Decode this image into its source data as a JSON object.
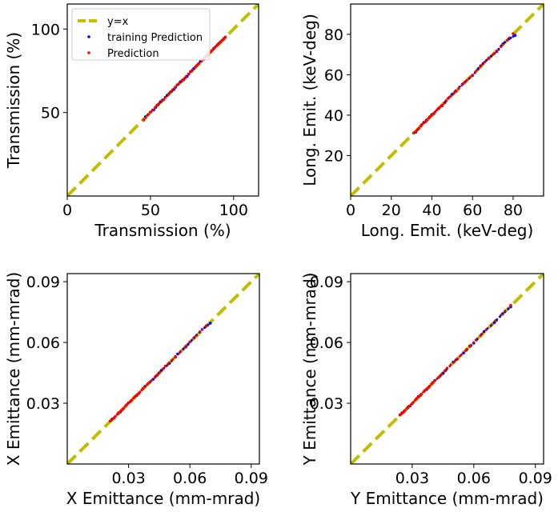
{
  "chart_data": [
    {
      "type": "scatter",
      "xlabel": "Transmission (%)",
      "ylabel": "Transmission (%)",
      "xlim": [
        0,
        115
      ],
      "ylim": [
        0,
        115
      ],
      "xticks": [
        0,
        50,
        100
      ],
      "xtick_labels": [
        "0",
        "50",
        "100"
      ],
      "yticks": [
        50,
        100
      ],
      "ytick_labels": [
        "50",
        "100"
      ],
      "legend": {
        "position": "top-left",
        "entries": [
          {
            "label": "y=x",
            "style": "dashed-line",
            "color": "#bfbf00"
          },
          {
            "label": "training Prediction",
            "style": "dot",
            "color": "#0000ff"
          },
          {
            "label": "Prediction",
            "style": "dot",
            "color": "#ff0000"
          }
        ]
      },
      "series": [
        {
          "name": "y=x",
          "kind": "line",
          "color": "#bfbf00",
          "x": [
            0,
            115
          ],
          "y": [
            0,
            115
          ]
        },
        {
          "name": "training Prediction",
          "kind": "scatter",
          "color": "#0000ff",
          "x": [
            47,
            52,
            56,
            60,
            64,
            68,
            72,
            76,
            80,
            84,
            88,
            91,
            94
          ],
          "y": [
            47.5,
            51.6,
            56.4,
            60.3,
            63.7,
            68.4,
            71.6,
            76.3,
            80.5,
            83.6,
            88.4,
            91.3,
            94.2
          ]
        },
        {
          "name": "Prediction",
          "kind": "scatter",
          "color": "#ff0000",
          "x": [
            46,
            50,
            54,
            58,
            62,
            66,
            70,
            74,
            78,
            82,
            84,
            86,
            88,
            90,
            92,
            94,
            95
          ],
          "y": [
            45.6,
            50.3,
            54.4,
            57.7,
            62.3,
            66.5,
            69.6,
            74.4,
            78.3,
            81.8,
            84.4,
            86.2,
            88.1,
            90.3,
            92.2,
            93.9,
            95.2
          ]
        }
      ]
    },
    {
      "type": "scatter",
      "xlabel": "Long. Emit. (keV-deg)",
      "ylabel": "Long. Emit. (keV-deg)",
      "xlim": [
        0,
        95
      ],
      "ylim": [
        0,
        95
      ],
      "xticks": [
        0,
        20,
        40,
        60,
        80
      ],
      "xtick_labels": [
        "0",
        "20",
        "40",
        "60",
        "80"
      ],
      "yticks": [
        20,
        40,
        60,
        80
      ],
      "ytick_labels": [
        "20",
        "40",
        "60",
        "80"
      ],
      "series": [
        {
          "name": "y=x",
          "kind": "line",
          "color": "#bfbf00",
          "x": [
            0,
            95
          ],
          "y": [
            0,
            95
          ]
        },
        {
          "name": "training Prediction",
          "kind": "scatter",
          "color": "#0000ff",
          "x": [
            32,
            36,
            40,
            45,
            50,
            55,
            60,
            64,
            68,
            72,
            75,
            78,
            81
          ],
          "y": [
            31.6,
            36.4,
            40.3,
            44.6,
            50.4,
            55.3,
            59.6,
            64.4,
            68.2,
            71.5,
            75.3,
            77.8,
            79.5
          ]
        },
        {
          "name": "Prediction",
          "kind": "scatter",
          "color": "#ff0000",
          "x": [
            31,
            33,
            35,
            37,
            39,
            41,
            43,
            45,
            48,
            52,
            56,
            60,
            66,
            72,
            80
          ],
          "y": [
            31.2,
            32.8,
            35.3,
            36.8,
            39.2,
            40.8,
            43.2,
            44.9,
            48.3,
            51.8,
            56.2,
            59.8,
            66.3,
            71.8,
            80.3
          ]
        }
      ]
    },
    {
      "type": "scatter",
      "xlabel": "X Emittance (mm-mrad)",
      "ylabel": "X Emittance (mm-mrad)",
      "xlim": [
        0,
        0.094
      ],
      "ylim": [
        0,
        0.094
      ],
      "xticks": [
        0.03,
        0.06,
        0.09
      ],
      "xtick_labels": [
        "0.03",
        "0.06",
        "0.09"
      ],
      "yticks": [
        0.03,
        0.06,
        0.09
      ],
      "ytick_labels": [
        "0.03",
        "0.06",
        "0.09"
      ],
      "series": [
        {
          "name": "y=x",
          "kind": "line",
          "color": "#bfbf00",
          "x": [
            0,
            0.094
          ],
          "y": [
            0,
            0.094
          ]
        },
        {
          "name": "training Prediction",
          "kind": "scatter",
          "color": "#0000ff",
          "x": [
            0.022,
            0.026,
            0.03,
            0.034,
            0.038,
            0.042,
            0.046,
            0.05,
            0.054,
            0.058,
            0.062,
            0.066,
            0.07
          ],
          "y": [
            0.0222,
            0.0257,
            0.0302,
            0.0338,
            0.0383,
            0.0418,
            0.0462,
            0.0497,
            0.0543,
            0.0578,
            0.0623,
            0.0664,
            0.0695
          ]
        },
        {
          "name": "Prediction",
          "kind": "scatter",
          "color": "#ff0000",
          "x": [
            0.021,
            0.023,
            0.025,
            0.027,
            0.029,
            0.031,
            0.033,
            0.035,
            0.037,
            0.04,
            0.044,
            0.048,
            0.053,
            0.06,
            0.068
          ],
          "y": [
            0.0212,
            0.0228,
            0.0252,
            0.0268,
            0.0292,
            0.0309,
            0.0332,
            0.0348,
            0.0372,
            0.0401,
            0.0438,
            0.0483,
            0.0528,
            0.0603,
            0.0682
          ]
        }
      ]
    },
    {
      "type": "scatter",
      "xlabel": "Y Emittance (mm-mrad)",
      "ylabel": "Y Emittance (mm-mrad)",
      "xlim": [
        0,
        0.094
      ],
      "ylim": [
        0,
        0.094
      ],
      "xticks": [
        0.03,
        0.06,
        0.09
      ],
      "xtick_labels": [
        "0.03",
        "0.06",
        "0.09"
      ],
      "yticks": [
        0.03,
        0.06,
        0.09
      ],
      "ytick_labels": [
        "0.03",
        "0.06",
        "0.09"
      ],
      "series": [
        {
          "name": "y=x",
          "kind": "line",
          "color": "#bfbf00",
          "x": [
            0,
            0.094
          ],
          "y": [
            0,
            0.094
          ]
        },
        {
          "name": "training Prediction",
          "kind": "scatter",
          "color": "#0000ff",
          "x": [
            0.025,
            0.029,
            0.033,
            0.037,
            0.041,
            0.045,
            0.05,
            0.055,
            0.06,
            0.065,
            0.07,
            0.074,
            0.078
          ],
          "y": [
            0.0252,
            0.0287,
            0.0333,
            0.0368,
            0.0412,
            0.0447,
            0.0503,
            0.0548,
            0.0597,
            0.0654,
            0.0698,
            0.0742,
            0.0776
          ]
        },
        {
          "name": "Prediction",
          "kind": "scatter",
          "color": "#ff0000",
          "x": [
            0.024,
            0.026,
            0.028,
            0.03,
            0.032,
            0.034,
            0.036,
            0.038,
            0.04,
            0.043,
            0.047,
            0.052,
            0.058,
            0.066,
            0.078
          ],
          "y": [
            0.0242,
            0.0258,
            0.0282,
            0.0298,
            0.0322,
            0.0338,
            0.0362,
            0.0378,
            0.0402,
            0.0428,
            0.0473,
            0.0518,
            0.0583,
            0.0662,
            0.0784
          ]
        }
      ]
    }
  ]
}
